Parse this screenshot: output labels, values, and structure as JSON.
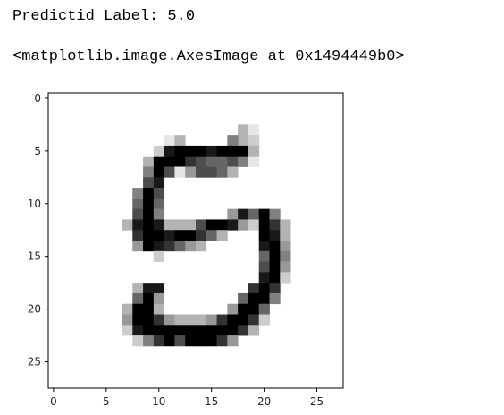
{
  "output": {
    "label_line": "Predictid Label: 5.0",
    "repr_line": "<matplotlib.image.AxesImage at 0x1494449b0>"
  },
  "chart_data": {
    "type": "heatmap",
    "colormap": "gray_r",
    "rows": 28,
    "cols": 28,
    "xlim": [
      -0.5,
      27.5
    ],
    "ylim": [
      27.5,
      -0.5
    ],
    "xticks": [
      0,
      5,
      10,
      15,
      20,
      25
    ],
    "yticks": [
      0,
      5,
      10,
      15,
      20,
      25
    ],
    "title": "",
    "xlabel": "",
    "ylabel": "",
    "grid": false,
    "pixels": [
      [
        3,
        18,
        0.3
      ],
      [
        4,
        18,
        0.3
      ],
      [
        3,
        19,
        0.1
      ],
      [
        4,
        11,
        0.1
      ],
      [
        4,
        12,
        0.3
      ],
      [
        4,
        17,
        0.5
      ],
      [
        4,
        19,
        0.2
      ],
      [
        5,
        10,
        0.2
      ],
      [
        5,
        11,
        0.9
      ],
      [
        5,
        12,
        1.0
      ],
      [
        5,
        13,
        1.0
      ],
      [
        5,
        14,
        1.0
      ],
      [
        5,
        15,
        0.9
      ],
      [
        5,
        16,
        1.0
      ],
      [
        5,
        17,
        1.0
      ],
      [
        5,
        18,
        1.0
      ],
      [
        5,
        19,
        0.3
      ],
      [
        6,
        9,
        0.3
      ],
      [
        6,
        10,
        1.0
      ],
      [
        6,
        11,
        1.0
      ],
      [
        6,
        12,
        1.0
      ],
      [
        6,
        13,
        0.8
      ],
      [
        6,
        14,
        0.7
      ],
      [
        6,
        15,
        0.6
      ],
      [
        6,
        16,
        0.6
      ],
      [
        6,
        17,
        0.7
      ],
      [
        6,
        18,
        0.5
      ],
      [
        6,
        19,
        0.1
      ],
      [
        7,
        9,
        0.5
      ],
      [
        7,
        10,
        1.0
      ],
      [
        7,
        11,
        0.7
      ],
      [
        7,
        12,
        0.1
      ],
      [
        7,
        13,
        0.4
      ],
      [
        7,
        14,
        0.7
      ],
      [
        7,
        15,
        0.7
      ],
      [
        7,
        16,
        0.6
      ],
      [
        7,
        17,
        0.3
      ],
      [
        8,
        9,
        0.7
      ],
      [
        8,
        10,
        0.9
      ],
      [
        9,
        8,
        0.5
      ],
      [
        9,
        9,
        1.0
      ],
      [
        9,
        10,
        0.7
      ],
      [
        10,
        8,
        0.6
      ],
      [
        10,
        9,
        1.0
      ],
      [
        10,
        10,
        0.6
      ],
      [
        11,
        8,
        0.7
      ],
      [
        11,
        9,
        1.0
      ],
      [
        11,
        10,
        0.5
      ],
      [
        11,
        17,
        0.4
      ],
      [
        11,
        18,
        0.9
      ],
      [
        11,
        19,
        0.6
      ],
      [
        11,
        20,
        1.0
      ],
      [
        11,
        21,
        0.5
      ],
      [
        12,
        7,
        0.3
      ],
      [
        12,
        8,
        0.9
      ],
      [
        12,
        9,
        1.0
      ],
      [
        12,
        10,
        0.9
      ],
      [
        12,
        11,
        0.3
      ],
      [
        12,
        12,
        0.3
      ],
      [
        12,
        13,
        0.3
      ],
      [
        12,
        14,
        0.7
      ],
      [
        12,
        15,
        1.0
      ],
      [
        12,
        16,
        1.0
      ],
      [
        12,
        17,
        0.9
      ],
      [
        12,
        18,
        0.4
      ],
      [
        12,
        19,
        0.2
      ],
      [
        12,
        20,
        1.0
      ],
      [
        12,
        21,
        0.8
      ],
      [
        12,
        22,
        0.3
      ],
      [
        13,
        8,
        0.8
      ],
      [
        13,
        9,
        1.0
      ],
      [
        13,
        10,
        1.0
      ],
      [
        13,
        11,
        0.9
      ],
      [
        13,
        12,
        1.0
      ],
      [
        13,
        13,
        1.0
      ],
      [
        13,
        14,
        0.8
      ],
      [
        13,
        15,
        0.6
      ],
      [
        13,
        16,
        0.3
      ],
      [
        13,
        20,
        1.0
      ],
      [
        13,
        21,
        0.9
      ],
      [
        13,
        22,
        0.3
      ],
      [
        14,
        8,
        0.4
      ],
      [
        14,
        9,
        1.0
      ],
      [
        14,
        10,
        0.9
      ],
      [
        14,
        11,
        0.8
      ],
      [
        14,
        12,
        0.6
      ],
      [
        14,
        13,
        0.4
      ],
      [
        14,
        14,
        0.3
      ],
      [
        14,
        20,
        0.9
      ],
      [
        14,
        21,
        1.0
      ],
      [
        14,
        22,
        0.4
      ],
      [
        15,
        10,
        0.2
      ],
      [
        15,
        20,
        0.6
      ],
      [
        15,
        21,
        1.0
      ],
      [
        15,
        22,
        0.5
      ],
      [
        16,
        20,
        0.7
      ],
      [
        16,
        21,
        1.0
      ],
      [
        16,
        22,
        0.4
      ],
      [
        17,
        20,
        0.9
      ],
      [
        17,
        21,
        1.0
      ],
      [
        17,
        22,
        0.2
      ],
      [
        18,
        8,
        0.3
      ],
      [
        18,
        9,
        0.9
      ],
      [
        18,
        10,
        0.9
      ],
      [
        18,
        19,
        0.8
      ],
      [
        18,
        20,
        1.0
      ],
      [
        18,
        21,
        0.8
      ],
      [
        19,
        8,
        0.6
      ],
      [
        19,
        9,
        1.0
      ],
      [
        19,
        10,
        0.4
      ],
      [
        19,
        18,
        0.6
      ],
      [
        19,
        19,
        1.0
      ],
      [
        19,
        20,
        1.0
      ],
      [
        19,
        21,
        0.5
      ],
      [
        20,
        7,
        0.3
      ],
      [
        20,
        8,
        1.0
      ],
      [
        20,
        9,
        1.0
      ],
      [
        20,
        10,
        0.3
      ],
      [
        20,
        17,
        0.4
      ],
      [
        20,
        18,
        1.0
      ],
      [
        20,
        19,
        1.0
      ],
      [
        20,
        20,
        0.6
      ],
      [
        21,
        7,
        0.4
      ],
      [
        21,
        8,
        1.0
      ],
      [
        21,
        9,
        1.0
      ],
      [
        21,
        10,
        0.8
      ],
      [
        21,
        11,
        0.4
      ],
      [
        21,
        12,
        0.3
      ],
      [
        21,
        13,
        0.3
      ],
      [
        21,
        14,
        0.3
      ],
      [
        21,
        15,
        0.4
      ],
      [
        21,
        16,
        0.8
      ],
      [
        21,
        17,
        1.0
      ],
      [
        21,
        18,
        1.0
      ],
      [
        21,
        19,
        0.8
      ],
      [
        21,
        20,
        0.2
      ],
      [
        22,
        7,
        0.2
      ],
      [
        22,
        8,
        0.9
      ],
      [
        22,
        9,
        1.0
      ],
      [
        22,
        10,
        1.0
      ],
      [
        22,
        11,
        1.0
      ],
      [
        22,
        12,
        1.0
      ],
      [
        22,
        13,
        1.0
      ],
      [
        22,
        14,
        1.0
      ],
      [
        22,
        15,
        1.0
      ],
      [
        22,
        16,
        1.0
      ],
      [
        22,
        17,
        1.0
      ],
      [
        22,
        18,
        0.8
      ],
      [
        22,
        19,
        0.3
      ],
      [
        23,
        8,
        0.2
      ],
      [
        23,
        9,
        0.5
      ],
      [
        23,
        10,
        0.8
      ],
      [
        23,
        11,
        1.0
      ],
      [
        23,
        12,
        0.7
      ],
      [
        23,
        13,
        1.0
      ],
      [
        23,
        14,
        1.0
      ],
      [
        23,
        15,
        1.0
      ],
      [
        23,
        16,
        0.8
      ],
      [
        23,
        17,
        0.4
      ]
    ]
  }
}
